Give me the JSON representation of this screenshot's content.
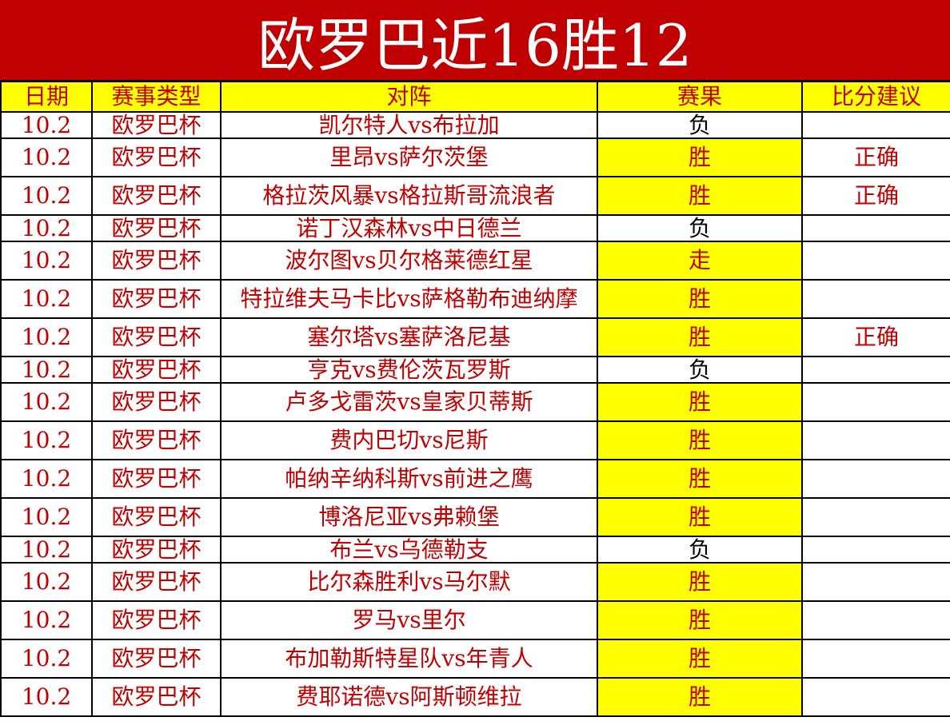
{
  "title": "欧罗巴近16胜12",
  "colors": {
    "title_bg": "#c00000",
    "header_bg": "#ffff00",
    "text_red": "#c00000",
    "highlight": "#ffff00"
  },
  "columns": [
    "日期",
    "赛事类型",
    "对阵",
    "赛果",
    "比分建议"
  ],
  "rows": [
    {
      "date": "10.2",
      "league": "欧罗巴杯",
      "match": "凯尔特人vs布拉加",
      "result": "负",
      "suggestion": ""
    },
    {
      "date": "10.2",
      "league": "欧罗巴杯",
      "match": "里昂vs萨尔茨堡",
      "result": "胜",
      "suggestion": "正确"
    },
    {
      "date": "10.2",
      "league": "欧罗巴杯",
      "match": "格拉茨风暴vs格拉斯哥流浪者",
      "result": "胜",
      "suggestion": "正确"
    },
    {
      "date": "10.2",
      "league": "欧罗巴杯",
      "match": "诺丁汉森林vs中日德兰",
      "result": "负",
      "suggestion": ""
    },
    {
      "date": "10.2",
      "league": "欧罗巴杯",
      "match": "波尔图vs贝尔格莱德红星",
      "result": "走",
      "suggestion": ""
    },
    {
      "date": "10.2",
      "league": "欧罗巴杯",
      "match": "特拉维夫马卡比vs萨格勒布迪纳摩",
      "result": "胜",
      "suggestion": ""
    },
    {
      "date": "10.2",
      "league": "欧罗巴杯",
      "match": "塞尔塔vs塞萨洛尼基",
      "result": "胜",
      "suggestion": "正确"
    },
    {
      "date": "10.2",
      "league": "欧罗巴杯",
      "match": "亨克vs费伦茨瓦罗斯",
      "result": "负",
      "suggestion": ""
    },
    {
      "date": "10.2",
      "league": "欧罗巴杯",
      "match": "卢多戈雷茨vs皇家贝蒂斯",
      "result": "胜",
      "suggestion": ""
    },
    {
      "date": "10.2",
      "league": "欧罗巴杯",
      "match": "费内巴切vs尼斯",
      "result": "胜",
      "suggestion": ""
    },
    {
      "date": "10.2",
      "league": "欧罗巴杯",
      "match": "帕纳辛纳科斯vs前进之鹰",
      "result": "胜",
      "suggestion": ""
    },
    {
      "date": "10.2",
      "league": "欧罗巴杯",
      "match": "博洛尼亚vs弗赖堡",
      "result": "胜",
      "suggestion": ""
    },
    {
      "date": "10.2",
      "league": "欧罗巴杯",
      "match": "布兰vs乌德勒支",
      "result": "负",
      "suggestion": ""
    },
    {
      "date": "10.2",
      "league": "欧罗巴杯",
      "match": "比尔森胜利vs马尔默",
      "result": "胜",
      "suggestion": ""
    },
    {
      "date": "10.2",
      "league": "欧罗巴杯",
      "match": "罗马vs里尔",
      "result": "胜",
      "suggestion": ""
    },
    {
      "date": "10.2",
      "league": "欧罗巴杯",
      "match": "布加勒斯特星队vs年青人",
      "result": "胜",
      "suggestion": ""
    },
    {
      "date": "10.2",
      "league": "欧罗巴杯",
      "match": "费耶诺德vs阿斯顿维拉",
      "result": "胜",
      "suggestion": ""
    }
  ]
}
